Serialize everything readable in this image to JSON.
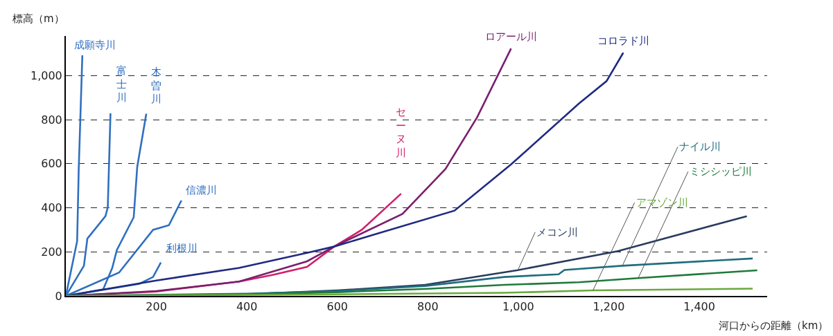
{
  "chart_data": {
    "type": "line",
    "ylabel": "標高（m）",
    "xlabel": "河口からの距離（km）",
    "xlim": [
      0,
      1550
    ],
    "ylim": [
      0,
      1180
    ],
    "xticks": [
      200,
      400,
      600,
      800,
      {
        "value": 1000,
        "label": "1,000"
      },
      {
        "value": 1200,
        "label": "1,200"
      },
      {
        "value": 1400,
        "label": "1,400"
      }
    ],
    "yticks": [
      0,
      200,
      400,
      600,
      800,
      {
        "value": 1000,
        "label": "1,000"
      }
    ],
    "grid": "y",
    "legend": false,
    "marker": "none",
    "line_style": "solid",
    "series": [
      {
        "name": "成願寺川",
        "color": "#2f6fbf",
        "x": [
          0,
          25,
          28.5,
          36.5
        ],
        "values": [
          0,
          249,
          576,
          1092
        ]
      },
      {
        "name": "富士川",
        "color": "#2f6fbf",
        "x": [
          0,
          40,
          47.6,
          87.6,
          92.7,
          98.7
        ],
        "values": [
          0,
          137,
          260,
          362,
          402,
          829
        ]
      },
      {
        "name": "木曽川",
        "color": "#2f6fbf",
        "x": [
          0,
          82.6,
          102.6,
          112.7,
          150,
          157.8,
          177.8
        ],
        "values": [
          0,
          30,
          127,
          208,
          357,
          586,
          827
        ]
      },
      {
        "name": "信濃川",
        "color": "#2f6fbf",
        "x": [
          0,
          117.6,
          192.8,
          227.8,
          255.4
        ],
        "values": [
          0,
          106,
          300,
          321,
          433
        ]
      },
      {
        "name": "利根川",
        "color": "#2f6fbf",
        "x": [
          0,
          162.7,
          192.8,
          210
        ],
        "values": [
          0,
          55,
          86,
          152
        ]
      },
      {
        "name": "セーヌ川",
        "color": "#d0206a",
        "x": [
          0,
          200,
          383,
          458,
          533,
          593,
          654,
          741
        ],
        "values": [
          0,
          20,
          65,
          96,
          132,
          224,
          300,
          464
        ]
      },
      {
        "name": "ロアール川",
        "color": "#7a1f6e",
        "x": [
          0,
          200,
          383,
          533,
          593,
          744,
          839,
          909,
          984
        ],
        "values": [
          0,
          22,
          65,
          157,
          224,
          372,
          576,
          811,
          1123
        ]
      },
      {
        "name": "コロラド川",
        "color": "#1f2a80",
        "x": [
          0,
          200,
          383,
          538,
          593,
          684,
          859,
          984,
          1134,
          1195,
          1232
        ],
        "values": [
          0,
          70,
          127,
          198,
          224,
          280,
          387,
          597,
          873,
          975,
          1104
        ]
      },
      {
        "name": "メコン川",
        "color": "#2a3a5e",
        "x": [
          0,
          400,
          600,
          794,
          999,
          1220,
          1505
        ],
        "values": [
          0,
          8,
          25,
          50,
          117,
          203,
          362
        ]
      },
      {
        "name": "ナイル川",
        "color": "#1f6e7e",
        "x": [
          0,
          400,
          600,
          794,
          969,
          1089,
          1102,
          1230,
          1518
        ],
        "values": [
          0,
          10,
          22,
          45,
          86,
          98,
          118,
          137,
          170
        ]
      },
      {
        "name": "ミシシッピ川",
        "color": "#1e7a3a",
        "x": [
          0,
          400,
          600,
          800,
          969,
          1134,
          1265,
          1528
        ],
        "values": [
          0,
          7,
          17,
          32,
          50,
          62,
          81,
          116
        ]
      },
      {
        "name": "アマゾン川",
        "color": "#6aa83a",
        "x": [
          0,
          600,
          969,
          1165,
          1518
        ],
        "values": [
          0,
          7,
          14,
          25,
          33
        ]
      }
    ]
  }
}
